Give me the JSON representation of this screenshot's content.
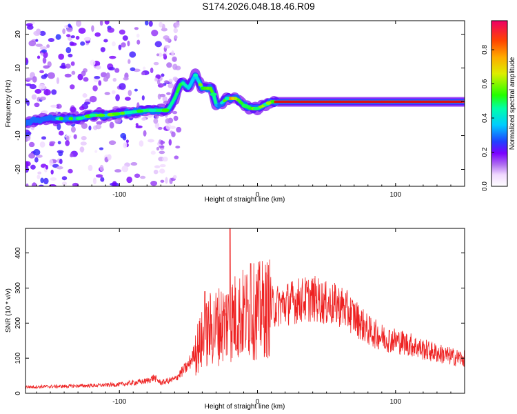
{
  "figure_title": "S174.2026.048.18.46.R09",
  "chart_data": [
    {
      "type": "heatmap",
      "title": "S174.2026.048.18.46.R09",
      "xlabel": "Height of straight line (km)",
      "ylabel": "Frequency (Hz)",
      "xlim": [
        -168,
        150
      ],
      "ylim": [
        -25,
        24
      ],
      "xticks": [
        -100,
        0,
        100
      ],
      "yticks": [
        -20,
        -10,
        0,
        10,
        20
      ],
      "colorbar": {
        "label": "Normalized spectral amplitude",
        "range": [
          0,
          0.97
        ],
        "ticks": [
          0.0,
          0.2,
          0.4,
          0.6,
          0.8
        ]
      },
      "ridge": {
        "description": "dominant frequency track vs height",
        "x": [
          -168,
          -150,
          -130,
          -120,
          -110,
          -100,
          -90,
          -80,
          -70,
          -65,
          -60,
          -57,
          -55,
          -50,
          -45,
          -40,
          -35,
          -33,
          -30,
          -28,
          -25,
          -22,
          -20,
          -15,
          -10,
          -5,
          0,
          5,
          10,
          15,
          30,
          60,
          90,
          95,
          100,
          120,
          148
        ],
        "y": [
          -6,
          -5,
          -5,
          -4,
          -4,
          -3.5,
          -3,
          -2.5,
          -2.5,
          -2.5,
          1,
          4,
          6,
          4,
          8,
          4,
          4,
          4,
          -1,
          -1,
          0,
          1,
          1,
          1,
          -1,
          -2,
          -2,
          -1,
          0,
          0,
          0,
          0,
          0,
          0,
          0,
          0,
          0
        ],
        "amplitude": [
          0.3,
          0.3,
          0.35,
          0.4,
          0.4,
          0.45,
          0.45,
          0.5,
          0.5,
          0.45,
          0.5,
          0.55,
          0.5,
          0.4,
          0.35,
          0.55,
          0.6,
          0.55,
          0.35,
          0.3,
          0.5,
          0.75,
          0.8,
          0.6,
          0.5,
          0.55,
          0.6,
          0.65,
          0.8,
          0.9,
          0.95,
          0.95,
          0.95,
          0.9,
          0.95,
          0.95,
          0.95
        ]
      },
      "noise_region_x": [
        -168,
        -60
      ]
    },
    {
      "type": "line",
      "title": "",
      "xlabel": "Height of straight line (km)",
      "ylabel": "SNR (10 * v/v)",
      "xlim": [
        -168,
        150
      ],
      "ylim": [
        0,
        470
      ],
      "xticks": [
        -100,
        0,
        100
      ],
      "yticks": [
        0,
        100,
        200,
        300,
        400
      ],
      "series": [
        {
          "name": "SNR",
          "color": "#ee2222",
          "envelope_x": [
            -168,
            -140,
            -120,
            -100,
            -90,
            -80,
            -75,
            -70,
            -60,
            -50,
            -45,
            -40,
            -35,
            -30,
            -25,
            -20,
            -15,
            -10,
            -5,
            0,
            10,
            20,
            30,
            40,
            45,
            50,
            60,
            70,
            80,
            90,
            100,
            110,
            120,
            130,
            140,
            150
          ],
          "envelope_y": [
            18,
            20,
            22,
            25,
            30,
            35,
            45,
            30,
            40,
            80,
            120,
            150,
            180,
            190,
            200,
            210,
            220,
            225,
            230,
            235,
            245,
            255,
            265,
            270,
            265,
            255,
            250,
            220,
            180,
            160,
            150,
            140,
            125,
            115,
            105,
            98
          ]
        }
      ],
      "peaks": [
        {
          "x": -20,
          "y": 470
        },
        {
          "x": -5,
          "y": 370
        },
        {
          "x": -38,
          "y": 290
        }
      ]
    }
  ]
}
